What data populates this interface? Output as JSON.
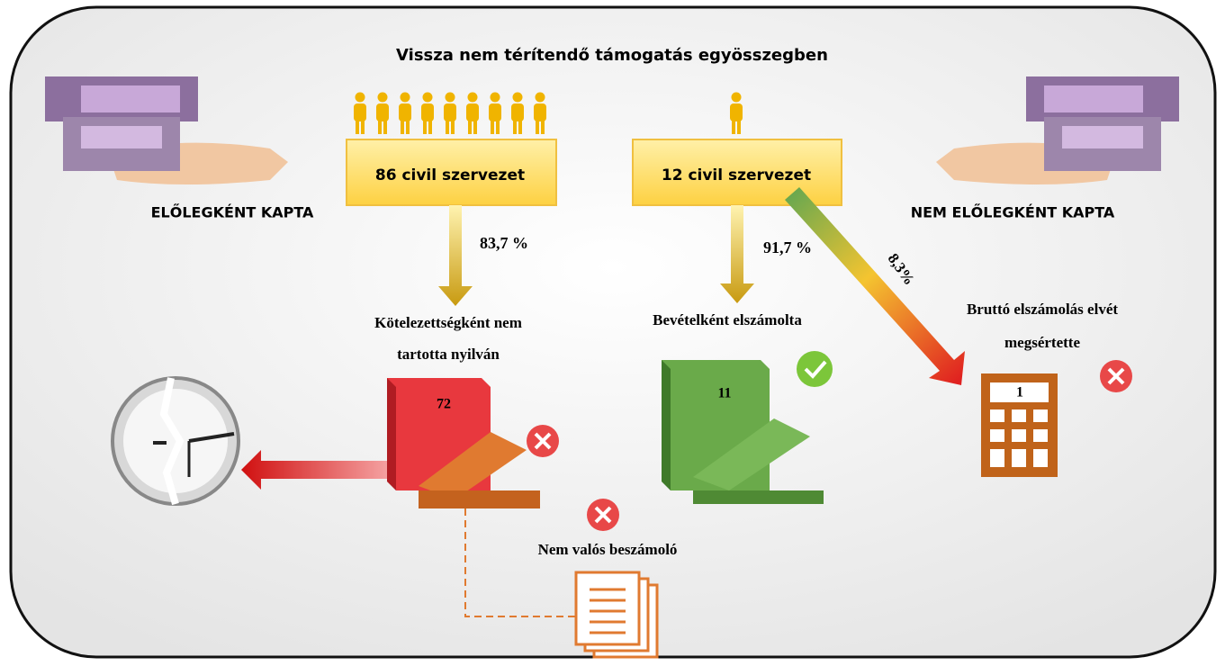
{
  "title": "Vissza nem térítendő támogatás egyösszegben",
  "left": {
    "heading": "ELŐLEGKÉNT KAPTA",
    "box": "86 civil szervezet",
    "percent": "83,7 %",
    "outcome_lines": [
      "Kötelezettségként nem",
      "tartotta nyilván"
    ],
    "folder_count": "72",
    "report_label": "Nem valós beszámoló"
  },
  "right": {
    "heading": "NEM ELŐLEGKÉNT KAPTA",
    "box": "12 civil szervezet",
    "percent": "91,7 %",
    "outcome": "Bevételként elszámolta",
    "folder_count": "11",
    "violation_percent": "8,3%",
    "violation_lines": [
      "Bruttó elszámolás elvét",
      "megsértette"
    ],
    "calculator_count": "1"
  }
}
